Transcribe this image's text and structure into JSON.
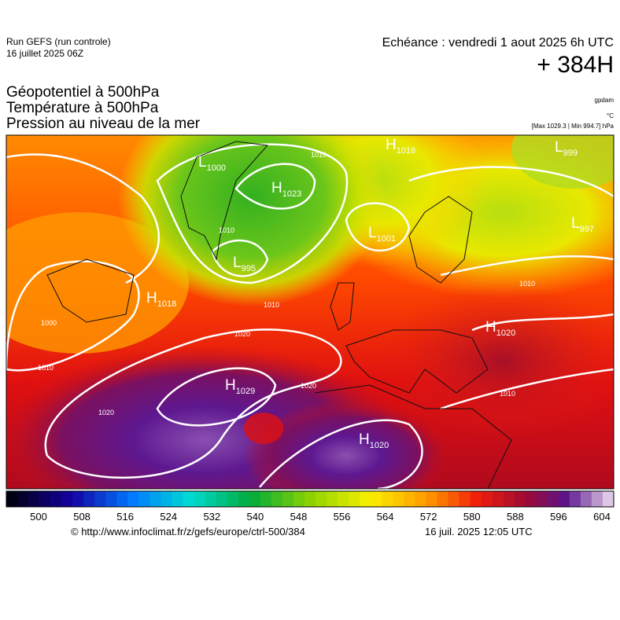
{
  "header": {
    "run": "Run GEFS (run controle)",
    "run_date": "16 juillet 2025 06Z",
    "valid": "Echéance : vendredi 1 aout 2025 6h UTC",
    "lead": "+ 384H",
    "fields": [
      "Géopotentiel à 500hPa",
      "Température à 500hPa",
      "Pression au niveau de la mer"
    ],
    "unit_geo": "gpdam",
    "unit_temp": "°C",
    "pressure_range": "[Max 1029.3 | Min 994.7] hPa"
  },
  "map": {
    "centers": [
      {
        "type": "L",
        "value": "1000"
      },
      {
        "type": "H",
        "value": "1023"
      },
      {
        "type": "H",
        "value": "1016"
      },
      {
        "type": "L",
        "value": "999"
      },
      {
        "type": "L",
        "value": "1001"
      },
      {
        "type": "L",
        "value": "997"
      },
      {
        "type": "L",
        "value": "995"
      },
      {
        "type": "H",
        "value": "1018"
      },
      {
        "type": "H",
        "value": "1020"
      },
      {
        "type": "H",
        "value": "1029"
      },
      {
        "type": "H",
        "value": "1020"
      }
    ],
    "isobar_labels": [
      "1010",
      "1010",
      "1010",
      "1020",
      "1010",
      "1020",
      "1020",
      "1010",
      "1010",
      "1000"
    ]
  },
  "colorbar": {
    "ticks": [
      500,
      508,
      516,
      524,
      532,
      540,
      548,
      556,
      564,
      572,
      580,
      588,
      596,
      604
    ]
  },
  "footer": {
    "source": "© http://www.infoclimat.fr/z/gefs/europe/ctrl-500/384",
    "generated": "16 juil. 2025 12:05 UTC"
  }
}
